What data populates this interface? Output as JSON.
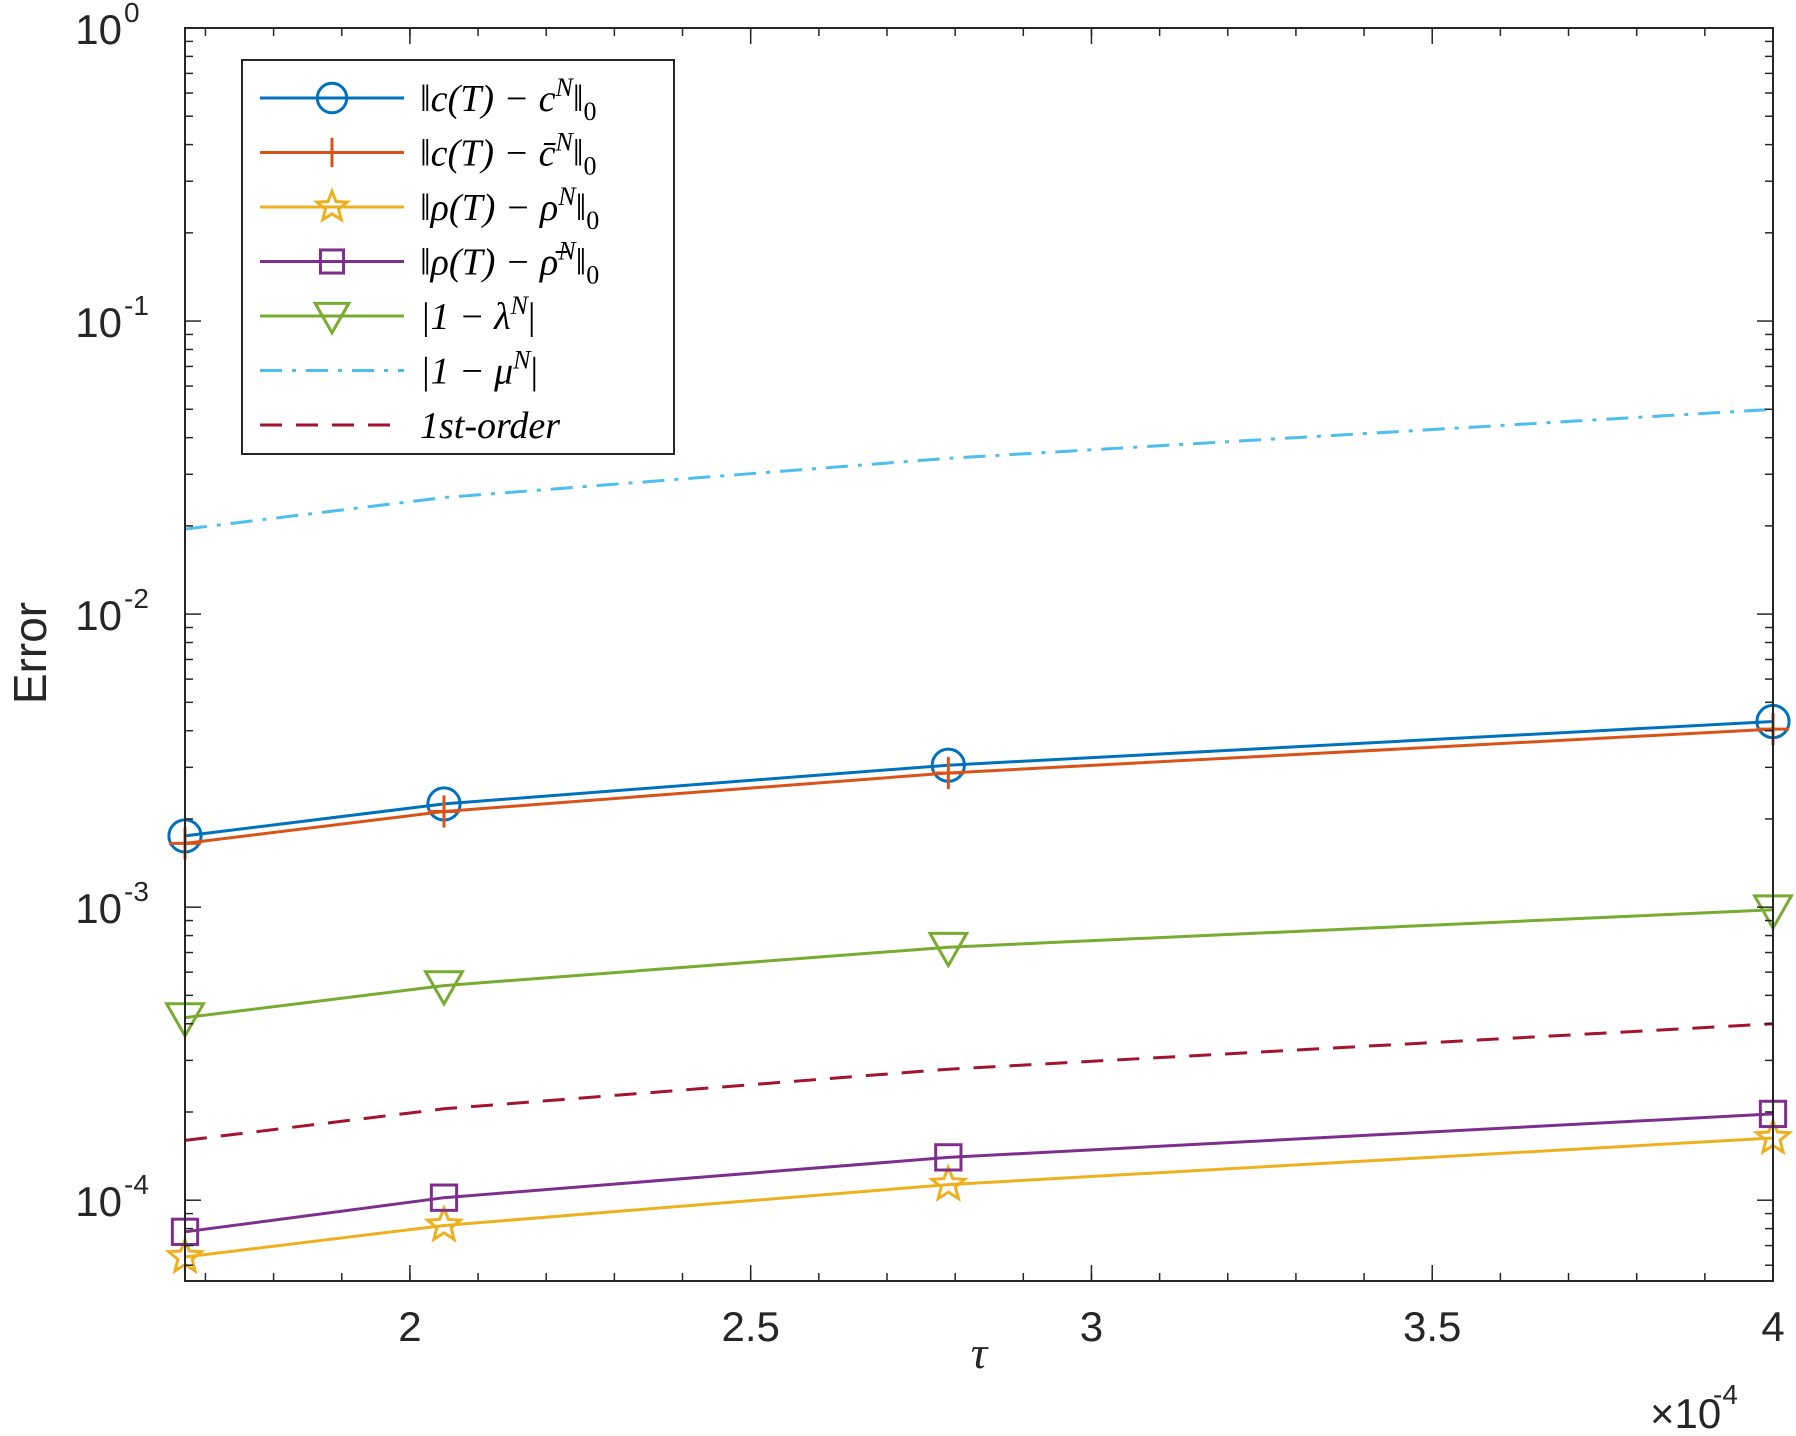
{
  "chart_data": {
    "type": "line",
    "xlabel": "τ",
    "ylabel": "Error",
    "x_scale": "linear",
    "y_scale": "log",
    "x_multiplier": "×10",
    "x_multiplier_exp": "-4",
    "xlim": [
      0.000167,
      0.0004
    ],
    "ylim": [
      5.3e-05,
      1.0
    ],
    "x_ticks": [
      0.0002,
      0.00025,
      0.0003,
      0.00035,
      0.0004
    ],
    "x_tick_labels": [
      "2",
      "2.5",
      "3",
      "3.5",
      "4"
    ],
    "y_ticks": [
      0.0001,
      0.001,
      0.01,
      0.1,
      1
    ],
    "y_tick_labels": [
      {
        "base": "10",
        "exp": "-4"
      },
      {
        "base": "10",
        "exp": "-3"
      },
      {
        "base": "10",
        "exp": "-2"
      },
      {
        "base": "10",
        "exp": "-1"
      },
      {
        "base": "10",
        "exp": "0"
      }
    ],
    "grid": false,
    "legend_position": "top-left",
    "x": [
      0.000167,
      0.000205,
      0.000279,
      0.0004
    ],
    "series": [
      {
        "name": "‖c(T) − c^N‖₀",
        "legend": {
          "pre": "‖c(T) − c",
          "sup": "N",
          "post": "‖",
          "sub": "0"
        },
        "color": "#0072BD",
        "marker": "circle",
        "line": "solid",
        "values": [
          0.00175,
          0.00225,
          0.00305,
          0.0043
        ]
      },
      {
        "name": "‖c(T) − c̄^N‖₀",
        "legend": {
          "pre": "‖c(T) − c̄",
          "sup": "N",
          "post": "‖",
          "sub": "0"
        },
        "color": "#D95319",
        "marker": "plus",
        "line": "solid",
        "values": [
          0.00165,
          0.00212,
          0.00287,
          0.00405
        ]
      },
      {
        "name": "‖ρ(T) − ρ^N‖₀",
        "legend": {
          "pre": "‖ρ(T) − ρ",
          "sup": "N",
          "post": "‖",
          "sub": "0"
        },
        "color": "#EDB120",
        "marker": "star",
        "line": "solid",
        "values": [
          6.4e-05,
          8.2e-05,
          0.000113,
          0.000163
        ]
      },
      {
        "name": "‖ρ(T) − ρ̄^N‖₀",
        "legend": {
          "pre": "‖ρ(T) − ρ̄",
          "sup": "N",
          "post": "‖",
          "sub": "0"
        },
        "color": "#7E2F8E",
        "marker": "square",
        "line": "solid",
        "values": [
          7.8e-05,
          0.000102,
          0.00014,
          0.000197
        ]
      },
      {
        "name": "|1 − λ^N|",
        "legend": {
          "pre": "|1 − λ",
          "sup": "N",
          "post": "|",
          "sub": ""
        },
        "color": "#77AC30",
        "marker": "triangle-down",
        "line": "solid",
        "values": [
          0.00042,
          0.00054,
          0.00073,
          0.00098
        ]
      },
      {
        "name": "|1 − μ^N|",
        "legend": {
          "pre": "|1 − μ",
          "sup": "N",
          "post": "|",
          "sub": ""
        },
        "color": "#4DBEEE",
        "marker": "none",
        "line": "dashdot",
        "values": [
          0.0195,
          0.025,
          0.034,
          0.05
        ]
      },
      {
        "name": "1st-order",
        "legend": {
          "pre": "1st-order",
          "sup": "",
          "post": "",
          "sub": ""
        },
        "color": "#A2142F",
        "marker": "none",
        "line": "dashed",
        "values": [
          0.00016,
          0.000205,
          0.00028,
          0.0004
        ]
      }
    ]
  }
}
